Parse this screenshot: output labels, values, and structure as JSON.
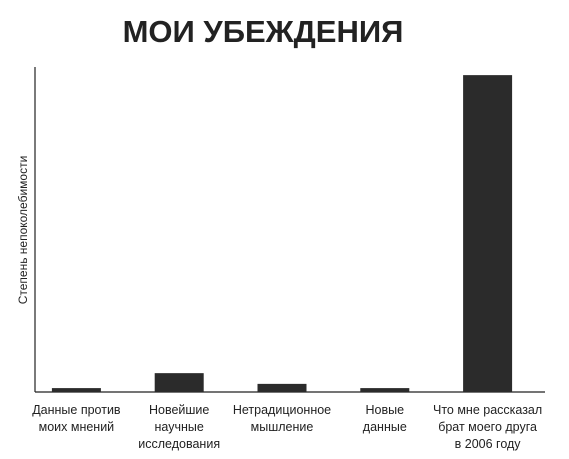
{
  "chart_data": {
    "type": "bar",
    "title": "МОИ УБЕЖДЕНИЯ",
    "y_label": "Степень непоколебимости",
    "categories": [
      "Данные против\nмоих мнений",
      "Новейшие\nнаучные\nисследования",
      "Нетрадиционное\nмышление",
      "Новые\nданные",
      "Что мне рассказал\nбрат моего друга\nв 2006 году"
    ],
    "values": [
      1.2,
      5.8,
      2.5,
      1.2,
      97.5
    ],
    "color": "#2b2b2b",
    "ylim": [
      0,
      100
    ]
  }
}
